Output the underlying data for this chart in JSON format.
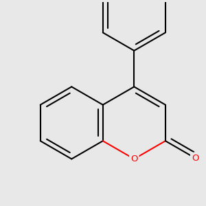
{
  "bg_color": "#e8e8e8",
  "bond_color": "#000000",
  "o_color": "#ff0000",
  "line_width": 1.5,
  "figsize": [
    3.0,
    3.0
  ],
  "dpi": 100,
  "xlim": [
    -2.8,
    2.8
  ],
  "ylim": [
    -2.8,
    2.8
  ]
}
